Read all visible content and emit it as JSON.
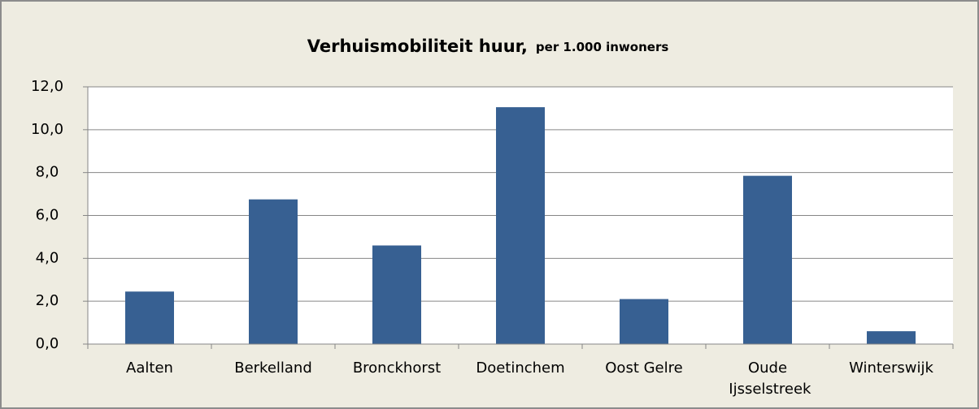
{
  "chart_data": {
    "type": "bar",
    "title": "Verhuismobiliteit huur,",
    "subtitle": "per 1.000 inwoners",
    "categories": [
      "Aalten",
      "Berkelland",
      "Bronckhorst",
      "Doetinchem",
      "Oost Gelre",
      "Oude Ijsselstreek",
      "Winterswijk"
    ],
    "values": [
      2.45,
      6.75,
      4.6,
      11.05,
      2.1,
      7.85,
      0.6
    ],
    "color": "#376092",
    "ylim": [
      0,
      12
    ],
    "yticks": [
      {
        "value": 0,
        "label": "0,0"
      },
      {
        "value": 2,
        "label": "2,0"
      },
      {
        "value": 4,
        "label": "4,0"
      },
      {
        "value": 6,
        "label": "6,0"
      },
      {
        "value": 8,
        "label": "8,0"
      },
      {
        "value": 10,
        "label": "10,0"
      },
      {
        "value": 12,
        "label": "12,0"
      }
    ],
    "grid": true
  }
}
